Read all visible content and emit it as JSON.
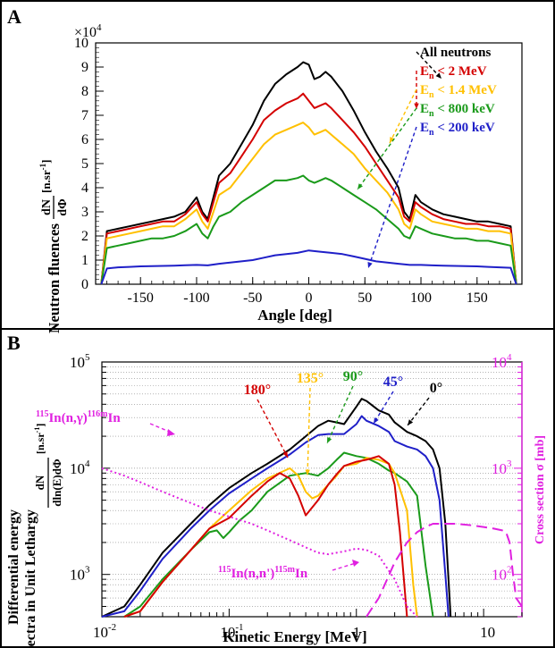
{
  "chart_data": [
    {
      "panel": "A",
      "type": "line",
      "exponent_label": "×10",
      "exponent_power": "4",
      "xlabel": "Angle [deg]",
      "ylabel_main": "Neutron fluences",
      "ylabel_frac_num": "dN",
      "ylabel_frac_den": "dΦ",
      "ylabel_unit": "[n.sr",
      "ylabel_unit_power": "-1",
      "ylabel_unit_close": "]",
      "xlim": [
        -190,
        190
      ],
      "ylim": [
        0,
        10
      ],
      "x_ticks": [
        -150,
        -100,
        -50,
        0,
        50,
        100,
        150
      ],
      "y_ticks": [
        0,
        1,
        2,
        3,
        4,
        5,
        6,
        7,
        8,
        9,
        10
      ],
      "legend": [
        {
          "text": "All neutrons",
          "base": "All neutrons",
          "sub": "",
          "rest": "",
          "color": "#000000"
        },
        {
          "text": "En < 2 MeV",
          "base": "E",
          "sub": "n",
          "rest": " < 2 MeV",
          "color": "#d40000"
        },
        {
          "text": "En < 1.4 MeV",
          "base": "E",
          "sub": "n",
          "rest": " < 1.4 MeV",
          "color": "#ffc000"
        },
        {
          "text": "En < 800 keV",
          "base": "E",
          "sub": "n",
          "rest": " < 800 keV",
          "color": "#1a9a1a"
        },
        {
          "text": "En < 200 keV",
          "base": "E",
          "sub": "n",
          "rest": " < 200 keV",
          "color": "#1f1fc8"
        }
      ],
      "series": [
        {
          "name": "All neutrons",
          "color": "#000000",
          "x": [
            -185,
            -180,
            -170,
            -160,
            -150,
            -140,
            -130,
            -120,
            -110,
            -100,
            -95,
            -90,
            -85,
            -80,
            -70,
            -60,
            -50,
            -40,
            -30,
            -20,
            -10,
            -5,
            0,
            5,
            10,
            15,
            20,
            30,
            40,
            50,
            60,
            70,
            80,
            85,
            90,
            95,
            100,
            110,
            120,
            130,
            140,
            150,
            160,
            170,
            180,
            185
          ],
          "y": [
            0,
            2.2,
            2.3,
            2.4,
            2.5,
            2.6,
            2.7,
            2.8,
            3.0,
            3.6,
            3.0,
            2.7,
            3.6,
            4.5,
            5.0,
            5.8,
            6.6,
            7.6,
            8.3,
            8.7,
            9.0,
            9.2,
            9.1,
            8.5,
            8.6,
            8.8,
            8.6,
            8.0,
            7.2,
            6.3,
            5.5,
            4.8,
            4.0,
            3.0,
            2.7,
            3.7,
            3.4,
            3.1,
            2.9,
            2.8,
            2.7,
            2.6,
            2.6,
            2.5,
            2.4,
            0
          ]
        },
        {
          "name": "En < 2 MeV",
          "color": "#d40000",
          "x": [
            -185,
            -180,
            -170,
            -160,
            -150,
            -140,
            -130,
            -120,
            -110,
            -100,
            -95,
            -90,
            -85,
            -80,
            -70,
            -60,
            -50,
            -40,
            -30,
            -20,
            -10,
            -5,
            0,
            5,
            10,
            15,
            20,
            30,
            40,
            50,
            60,
            70,
            80,
            85,
            90,
            95,
            100,
            110,
            120,
            130,
            140,
            150,
            160,
            170,
            180,
            185
          ],
          "y": [
            0,
            2.1,
            2.2,
            2.3,
            2.4,
            2.5,
            2.6,
            2.6,
            2.9,
            3.4,
            2.9,
            2.6,
            3.4,
            4.2,
            4.6,
            5.3,
            6.0,
            6.8,
            7.2,
            7.5,
            7.7,
            7.9,
            7.6,
            7.3,
            7.4,
            7.5,
            7.3,
            6.8,
            6.3,
            5.7,
            5.0,
            4.3,
            3.6,
            2.8,
            2.6,
            3.4,
            3.2,
            2.9,
            2.7,
            2.6,
            2.5,
            2.5,
            2.4,
            2.4,
            2.3,
            0
          ]
        },
        {
          "name": "En < 1.4 MeV",
          "color": "#ffc000",
          "x": [
            -185,
            -180,
            -170,
            -160,
            -150,
            -140,
            -130,
            -120,
            -110,
            -100,
            -95,
            -90,
            -85,
            -80,
            -70,
            -60,
            -50,
            -40,
            -30,
            -20,
            -10,
            -5,
            0,
            5,
            10,
            15,
            20,
            30,
            40,
            50,
            60,
            70,
            80,
            85,
            90,
            95,
            100,
            110,
            120,
            130,
            140,
            150,
            160,
            170,
            180,
            185
          ],
          "y": [
            0,
            1.9,
            2.0,
            2.1,
            2.2,
            2.3,
            2.4,
            2.4,
            2.7,
            3.1,
            2.6,
            2.3,
            3.0,
            3.7,
            4.0,
            4.6,
            5.2,
            5.8,
            6.2,
            6.4,
            6.6,
            6.7,
            6.5,
            6.2,
            6.3,
            6.4,
            6.2,
            5.8,
            5.4,
            4.8,
            4.3,
            3.8,
            3.1,
            2.5,
            2.3,
            3.1,
            2.9,
            2.6,
            2.5,
            2.4,
            2.3,
            2.3,
            2.2,
            2.2,
            2.1,
            0
          ]
        },
        {
          "name": "En < 800 keV",
          "color": "#1a9a1a",
          "x": [
            -185,
            -180,
            -170,
            -160,
            -150,
            -140,
            -130,
            -120,
            -110,
            -100,
            -95,
            -90,
            -85,
            -80,
            -70,
            -60,
            -50,
            -40,
            -30,
            -20,
            -10,
            -5,
            0,
            5,
            10,
            15,
            20,
            30,
            40,
            50,
            60,
            70,
            80,
            85,
            90,
            95,
            100,
            110,
            120,
            130,
            140,
            150,
            160,
            170,
            180,
            185
          ],
          "y": [
            0,
            1.5,
            1.6,
            1.7,
            1.8,
            1.9,
            1.9,
            2.0,
            2.2,
            2.5,
            2.1,
            1.9,
            2.4,
            2.8,
            3.0,
            3.4,
            3.7,
            4.0,
            4.3,
            4.3,
            4.4,
            4.5,
            4.3,
            4.2,
            4.3,
            4.4,
            4.3,
            4.0,
            3.7,
            3.4,
            3.1,
            2.7,
            2.3,
            2.0,
            1.9,
            2.4,
            2.3,
            2.1,
            2.0,
            1.9,
            1.9,
            1.8,
            1.8,
            1.7,
            1.6,
            0
          ]
        },
        {
          "name": "En < 200 keV",
          "color": "#1f1fc8",
          "x": [
            -185,
            -180,
            -170,
            -160,
            -150,
            -140,
            -130,
            -120,
            -110,
            -100,
            -90,
            -80,
            -70,
            -60,
            -50,
            -40,
            -30,
            -20,
            -10,
            0,
            10,
            20,
            30,
            40,
            50,
            60,
            70,
            80,
            90,
            100,
            110,
            120,
            130,
            140,
            150,
            160,
            170,
            180,
            185
          ],
          "y": [
            0,
            0.65,
            0.7,
            0.72,
            0.74,
            0.75,
            0.76,
            0.77,
            0.79,
            0.8,
            0.78,
            0.85,
            0.9,
            0.95,
            1.0,
            1.1,
            1.2,
            1.25,
            1.3,
            1.4,
            1.35,
            1.3,
            1.25,
            1.15,
            1.05,
            0.95,
            0.9,
            0.85,
            0.8,
            0.8,
            0.78,
            0.77,
            0.76,
            0.75,
            0.74,
            0.72,
            0.7,
            0.68,
            0
          ]
        }
      ]
    },
    {
      "panel": "B",
      "type": "line",
      "xscale": "log",
      "yscale": "log",
      "xlabel": "Kinetic Energy [MeV]",
      "ylabel_line1": "Differential energy",
      "ylabel_line2": "spectra in Unit Lethargy",
      "ylabel_frac_num": "dN",
      "ylabel_frac_den": "dln(E)dΦ",
      "ylabel_unit": "[n.sr",
      "ylabel_unit_power": "-1",
      "ylabel_unit_close": "]",
      "y2label": "Cross section σ [mb]",
      "xlim": [
        0.01,
        20
      ],
      "ylim": [
        400,
        100000
      ],
      "y2lim": [
        40,
        10000
      ],
      "x_tick_labels": [
        {
          "value": 0.01,
          "base": "10",
          "power": "-2"
        },
        {
          "value": 0.1,
          "base": "10",
          "power": "-1"
        },
        {
          "value": 1,
          "base": "1",
          "power": ""
        },
        {
          "value": 10,
          "base": "10",
          "power": ""
        }
      ],
      "y_tick_labels": [
        {
          "value": 1000,
          "base": "10",
          "power": "3"
        },
        {
          "value": 10000,
          "base": "10",
          "power": "4"
        },
        {
          "value": 100000,
          "base": "10",
          "power": "5"
        }
      ],
      "y2_tick_labels": [
        {
          "value": 100,
          "base": "10",
          "power": "2"
        },
        {
          "value": 1000,
          "base": "10",
          "power": "3"
        },
        {
          "value": 10000,
          "base": "10",
          "power": "4"
        }
      ],
      "angle_labels": [
        {
          "text": "180°",
          "color": "#d40000"
        },
        {
          "text": "135°",
          "color": "#ffc000"
        },
        {
          "text": "90°",
          "color": "#1a9a1a"
        },
        {
          "text": "45°",
          "color": "#1f1fc8"
        },
        {
          "text": "0°",
          "color": "#000000"
        }
      ],
      "reaction_labels": [
        {
          "text": "115In(n,γ)116mIn",
          "color": "#e020e0"
        },
        {
          "text": "115In(n,n')115mIn",
          "color": "#e020e0"
        }
      ],
      "series": [
        {
          "name": "0°",
          "color": "#000000",
          "x": [
            0.01,
            0.015,
            0.02,
            0.03,
            0.05,
            0.07,
            0.1,
            0.15,
            0.2,
            0.3,
            0.4,
            0.5,
            0.6,
            0.7,
            0.8,
            1.0,
            1.1,
            1.2,
            1.5,
            1.8,
            2.0,
            2.5,
            3.0,
            3.5,
            4.0,
            4.5,
            5.0,
            5.5
          ],
          "y": [
            300,
            500,
            800,
            1600,
            3000,
            4500,
            6500,
            9000,
            11000,
            15000,
            20000,
            25000,
            28000,
            27000,
            26000,
            38000,
            45000,
            43000,
            35000,
            32000,
            27000,
            22000,
            20000,
            18000,
            15000,
            10000,
            3000,
            300
          ]
        },
        {
          "name": "45°",
          "color": "#1f1fc8",
          "x": [
            0.01,
            0.015,
            0.02,
            0.03,
            0.05,
            0.07,
            0.1,
            0.15,
            0.2,
            0.3,
            0.4,
            0.5,
            0.6,
            0.7,
            0.8,
            1.0,
            1.1,
            1.2,
            1.5,
            1.8,
            2.0,
            2.5,
            3.0,
            3.5,
            4.0,
            4.5,
            5.0,
            5.3
          ],
          "y": [
            300,
            450,
            700,
            1400,
            2700,
            4000,
            5800,
            8000,
            10000,
            13500,
            17500,
            20500,
            21000,
            21000,
            21000,
            26000,
            31000,
            28000,
            25000,
            22000,
            18000,
            16000,
            15000,
            13000,
            10000,
            5000,
            1000,
            300
          ]
        },
        {
          "name": "90°",
          "color": "#1a9a1a",
          "x": [
            0.015,
            0.02,
            0.03,
            0.05,
            0.07,
            0.08,
            0.09,
            0.1,
            0.12,
            0.15,
            0.2,
            0.3,
            0.4,
            0.5,
            0.6,
            0.7,
            0.8,
            1.0,
            1.2,
            1.5,
            1.8,
            2.0,
            2.5,
            3.0,
            3.5,
            4.0
          ],
          "y": [
            350,
            500,
            900,
            1700,
            2500,
            2600,
            2200,
            2500,
            3200,
            4000,
            6000,
            8500,
            9000,
            8500,
            10000,
            12000,
            14000,
            13000,
            12500,
            11000,
            9500,
            9000,
            7500,
            5500,
            1200,
            300
          ]
        },
        {
          "name": "135°",
          "color": "#ffc000",
          "x": [
            0.015,
            0.02,
            0.03,
            0.05,
            0.07,
            0.1,
            0.15,
            0.2,
            0.3,
            0.35,
            0.4,
            0.45,
            0.5,
            0.6,
            0.7,
            0.8,
            1.0,
            1.2,
            1.5,
            1.8,
            2.0,
            2.5,
            2.8,
            3.0
          ],
          "y": [
            300,
            450,
            850,
            1700,
            2700,
            4000,
            6200,
            8000,
            10000,
            8500,
            6000,
            5200,
            5500,
            7000,
            8500,
            10500,
            11000,
            12500,
            12000,
            11000,
            9000,
            4000,
            800,
            300
          ]
        },
        {
          "name": "180°",
          "color": "#d40000",
          "x": [
            0.015,
            0.02,
            0.03,
            0.05,
            0.07,
            0.1,
            0.15,
            0.2,
            0.25,
            0.3,
            0.35,
            0.4,
            0.5,
            0.6,
            0.7,
            0.8,
            1.0,
            1.2,
            1.5,
            1.8,
            2.0,
            2.2,
            2.5
          ],
          "y": [
            300,
            450,
            850,
            1700,
            2700,
            3400,
            5500,
            7500,
            9000,
            8000,
            5500,
            3600,
            5000,
            7000,
            8800,
            10500,
            11500,
            12000,
            13000,
            11000,
            7000,
            2500,
            300
          ]
        },
        {
          "name": "115In(n,γ)116mIn",
          "color": "#e020e0",
          "dash": "dotted",
          "x": [
            0.01,
            0.015,
            0.02,
            0.03,
            0.05,
            0.07,
            0.1,
            0.15,
            0.2,
            0.3,
            0.4,
            0.5,
            0.6,
            0.7,
            0.8,
            1.0,
            1.2,
            1.5,
            2.0,
            2.5,
            3.0
          ],
          "y2": [
            1000,
            850,
            740,
            600,
            470,
            400,
            350,
            300,
            260,
            210,
            180,
            160,
            155,
            160,
            165,
            175,
            170,
            150,
            90,
            50,
            25
          ]
        },
        {
          "name": "115In(n,n')115mIn",
          "color": "#e020e0",
          "dash": "dashed",
          "x": [
            1.2,
            1.5,
            2.0,
            2.5,
            3.0,
            3.5,
            4.0,
            5.0,
            6.0,
            8.0,
            10,
            12,
            14,
            15,
            16,
            17,
            18,
            20
          ],
          "y2": [
            35,
            60,
            130,
            200,
            250,
            280,
            300,
            300,
            300,
            290,
            280,
            270,
            260,
            250,
            200,
            100,
            60,
            50
          ]
        }
      ]
    }
  ],
  "panel_letters": [
    "A",
    "B"
  ]
}
